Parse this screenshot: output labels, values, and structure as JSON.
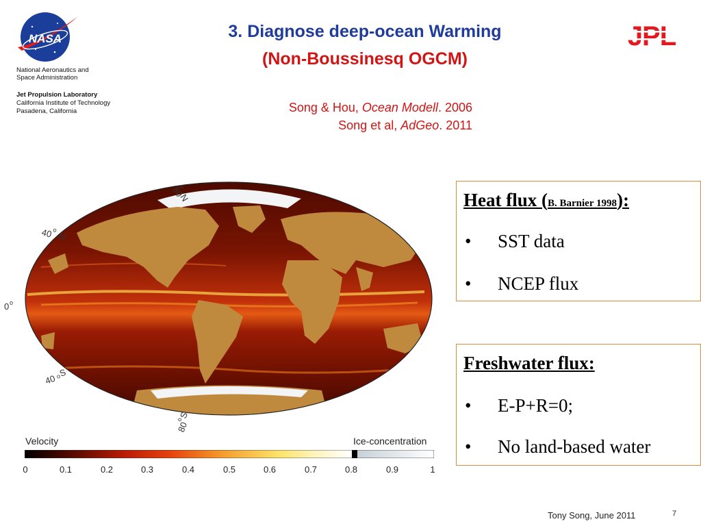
{
  "header": {
    "agency_lines": [
      "National Aeronautics and",
      "Space Administration"
    ],
    "lab_lines": [
      "Jet Propulsion Laboratory",
      "California Institute of Technology",
      "Pasadena, California"
    ],
    "nasa_logo_text": "NASA",
    "jpl_logo_text": "JPL"
  },
  "title": {
    "line1": "3. Diagnose deep-ocean Warming",
    "line2": "(Non-Boussinesq OGCM)"
  },
  "citations": [
    {
      "authors": "Song & Hou, ",
      "journal": "Ocean Modell",
      "year": ". 2006"
    },
    {
      "authors": "Song et al, ",
      "journal": "AdGeo",
      "year": ". 2011"
    }
  ],
  "map": {
    "latitude_labels": [
      "80",
      "N",
      "40",
      "N",
      "0",
      "40",
      "S",
      "80",
      "S"
    ],
    "degree_symbol": "o"
  },
  "colorbar": {
    "left_label": "Velocity",
    "right_label": "Ice-concentration",
    "ticks": [
      "0",
      "0.1",
      "0.2",
      "0.3",
      "0.4",
      "0.5",
      "0.6",
      "0.7",
      "0.8",
      "0.9",
      "1"
    ]
  },
  "heat_box": {
    "title": "Heat flux (",
    "title_small": "B. Barnier 1998",
    "title_end": "):",
    "bullets": [
      "SST data",
      "NCEP flux"
    ]
  },
  "fresh_box": {
    "title": "Freshwater flux:",
    "bullets": [
      "E-P+R=0;",
      "No land-based water"
    ]
  },
  "bullet_char": "•",
  "footer": {
    "author": "Tony Song, June 2011",
    "page": "7"
  }
}
